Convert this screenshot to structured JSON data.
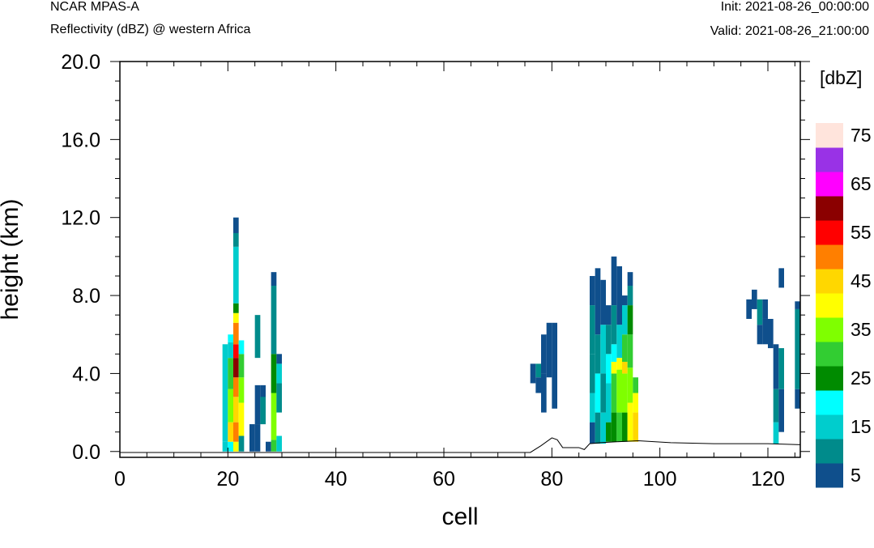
{
  "header": {
    "title": "NCAR MPAS-A",
    "subtitle": "Reflectivity (dBZ) @ western Africa",
    "init": "Init: 2021-08-26_00:00:00",
    "valid": "Valid: 2021-08-26_21:00:00"
  },
  "chart_data": {
    "type": "heatmap",
    "title": "NCAR MPAS-A",
    "subtitle": "Reflectivity (dBZ) @ western Africa",
    "xlabel": "cell",
    "ylabel": "height (km)",
    "xlim": [
      0,
      126
    ],
    "ylim": [
      -0.3,
      20
    ],
    "x_ticks": [
      "0",
      "20",
      "40",
      "60",
      "80",
      "100",
      "120"
    ],
    "y_ticks": [
      "0.0",
      "4.0",
      "8.0",
      "12.0",
      "16.0",
      "20.0"
    ],
    "colorbar": {
      "unit": "[dbZ]",
      "levels": [
        5,
        10,
        15,
        20,
        25,
        30,
        35,
        40,
        45,
        50,
        55,
        60,
        65,
        70,
        75
      ],
      "labels": [
        "5",
        "15",
        "25",
        "35",
        "45",
        "55",
        "65",
        "75"
      ],
      "colors": [
        "#0f4f8c",
        "#008b8b",
        "#00cdcd",
        "#00ffff",
        "#008b00",
        "#32cd32",
        "#7fff00",
        "#ffff00",
        "#ffd700",
        "#ff7f00",
        "#ff0000",
        "#8b0000",
        "#ff00ff",
        "#9932e6",
        "#ffe4dc"
      ]
    },
    "terrain": [
      [
        0,
        -0.05
      ],
      [
        75,
        -0.05
      ],
      [
        76,
        -0.05
      ],
      [
        78,
        0.3
      ],
      [
        80,
        0.7
      ],
      [
        81,
        0.6
      ],
      [
        82,
        0.2
      ],
      [
        85,
        0.2
      ],
      [
        86,
        0.1
      ],
      [
        87,
        0.4
      ],
      [
        89,
        0.45
      ],
      [
        92,
        0.5
      ],
      [
        96,
        0.55
      ],
      [
        102,
        0.45
      ],
      [
        110,
        0.4
      ],
      [
        120,
        0.4
      ],
      [
        126,
        0.35
      ]
    ],
    "columns": [
      {
        "x": 19,
        "segs": [
          [
            0,
            0.5,
            2
          ],
          [
            0.5,
            5.5,
            2
          ]
        ]
      },
      {
        "x": 20,
        "segs": [
          [
            0,
            0.5,
            3
          ],
          [
            0.5,
            1.5,
            8
          ],
          [
            1.5,
            3.2,
            6
          ],
          [
            3.2,
            4.8,
            5
          ],
          [
            4.8,
            5.6,
            2
          ],
          [
            5.6,
            6.0,
            3
          ]
        ]
      },
      {
        "x": 21,
        "segs": [
          [
            0,
            0.5,
            7
          ],
          [
            0.5,
            1.5,
            9
          ],
          [
            1.5,
            2.8,
            8
          ],
          [
            2.8,
            3.8,
            9
          ],
          [
            3.8,
            4.8,
            11
          ],
          [
            4.8,
            5.5,
            10
          ],
          [
            5.5,
            6.6,
            9
          ],
          [
            6.6,
            7.1,
            7
          ],
          [
            7.1,
            7.6,
            4
          ],
          [
            7.6,
            10.5,
            2
          ],
          [
            10.5,
            11.2,
            1
          ],
          [
            11.2,
            12.0,
            0
          ]
        ]
      },
      {
        "x": 22,
        "segs": [
          [
            0,
            0.8,
            1
          ],
          [
            0.8,
            2.5,
            7
          ],
          [
            2.5,
            3.8,
            6
          ],
          [
            3.8,
            5.0,
            5
          ],
          [
            5.0,
            5.7,
            3
          ]
        ]
      },
      {
        "x": 24,
        "segs": [
          [
            0,
            1.4,
            0
          ]
        ]
      },
      {
        "x": 25,
        "segs": [
          [
            0,
            1.4,
            0
          ],
          [
            1.4,
            3.4,
            0
          ],
          [
            4.8,
            7.0,
            1
          ]
        ]
      },
      {
        "x": 26,
        "segs": [
          [
            1.4,
            3.4,
            0
          ],
          [
            1.4,
            2.8,
            1
          ]
        ]
      },
      {
        "x": 27,
        "segs": [
          [
            0,
            0.5,
            0
          ]
        ]
      },
      {
        "x": 28,
        "segs": [
          [
            0,
            0.6,
            5
          ],
          [
            0.6,
            3.0,
            6
          ],
          [
            3.0,
            5.0,
            4
          ],
          [
            5.0,
            8.5,
            1
          ],
          [
            8.5,
            9.2,
            0
          ]
        ]
      },
      {
        "x": 29,
        "segs": [
          [
            0,
            0.8,
            2
          ],
          [
            2.0,
            3.5,
            1
          ],
          [
            3.5,
            4.5,
            2
          ],
          [
            4.5,
            5.0,
            0
          ]
        ]
      },
      {
        "x": 76,
        "segs": [
          [
            3.5,
            4.5,
            0
          ]
        ]
      },
      {
        "x": 77,
        "segs": [
          [
            3.8,
            4.5,
            1
          ],
          [
            3.0,
            3.8,
            0
          ]
        ]
      },
      {
        "x": 78,
        "segs": [
          [
            2.0,
            4.0,
            0
          ],
          [
            4.0,
            6.0,
            0
          ]
        ]
      },
      {
        "x": 79,
        "segs": [
          [
            3.8,
            6.6,
            0
          ]
        ]
      },
      {
        "x": 80,
        "segs": [
          [
            2.2,
            6.6,
            0
          ]
        ]
      },
      {
        "x": 87,
        "segs": [
          [
            0.4,
            1.5,
            0
          ],
          [
            1.5,
            3.0,
            2
          ],
          [
            3.0,
            5.0,
            1
          ],
          [
            5.0,
            7.5,
            1
          ],
          [
            7.5,
            9.0,
            0
          ]
        ]
      },
      {
        "x": 88,
        "segs": [
          [
            0.4,
            2.0,
            1
          ],
          [
            2.0,
            4.0,
            3
          ],
          [
            4.0,
            6.0,
            1
          ],
          [
            6.0,
            9.4,
            0
          ]
        ]
      },
      {
        "x": 89,
        "segs": [
          [
            0.4,
            2.0,
            2
          ],
          [
            2.0,
            4.0,
            1
          ],
          [
            4.0,
            6.5,
            2
          ],
          [
            6.5,
            8.8,
            0
          ]
        ]
      },
      {
        "x": 90,
        "segs": [
          [
            0.5,
            1.5,
            4
          ],
          [
            1.5,
            3.5,
            2
          ],
          [
            3.5,
            5.0,
            3
          ],
          [
            5.0,
            6.5,
            1
          ],
          [
            6.5,
            7.5,
            0
          ]
        ]
      },
      {
        "x": 91,
        "segs": [
          [
            0.5,
            2.0,
            4
          ],
          [
            2.0,
            4.0,
            5
          ],
          [
            4.0,
            4.6,
            7
          ],
          [
            4.6,
            5.5,
            3
          ],
          [
            5.5,
            7.5,
            1
          ],
          [
            7.5,
            10.0,
            0
          ]
        ]
      },
      {
        "x": 92,
        "segs": [
          [
            0.5,
            2.0,
            5
          ],
          [
            2.0,
            4.2,
            6
          ],
          [
            4.2,
            4.8,
            7
          ],
          [
            4.8,
            6.5,
            2
          ],
          [
            6.5,
            9.5,
            0
          ]
        ]
      },
      {
        "x": 93,
        "segs": [
          [
            0.5,
            2.0,
            4
          ],
          [
            2.0,
            4.0,
            6
          ],
          [
            4.0,
            4.6,
            8
          ],
          [
            4.6,
            6.0,
            5
          ],
          [
            6.0,
            7.5,
            2
          ],
          [
            7.5,
            8.0,
            0
          ]
        ]
      },
      {
        "x": 94,
        "segs": [
          [
            0.5,
            2.5,
            7
          ],
          [
            2.5,
            4.3,
            6
          ],
          [
            4.3,
            6.0,
            5
          ],
          [
            6.0,
            7.5,
            4
          ],
          [
            7.5,
            8.5,
            1
          ],
          [
            8.5,
            9.2,
            0
          ]
        ]
      },
      {
        "x": 95,
        "segs": [
          [
            0.5,
            2.0,
            8
          ],
          [
            2.0,
            3.0,
            7
          ],
          [
            3.0,
            3.8,
            5
          ]
        ]
      },
      {
        "x": 116,
        "segs": [
          [
            6.8,
            7.8,
            0
          ]
        ]
      },
      {
        "x": 117,
        "segs": [
          [
            7.3,
            8.3,
            0
          ]
        ]
      },
      {
        "x": 118,
        "segs": [
          [
            5.5,
            6.5,
            0
          ],
          [
            6.5,
            7.8,
            1
          ]
        ]
      },
      {
        "x": 119,
        "segs": [
          [
            5.5,
            6.8,
            0
          ],
          [
            6.8,
            7.8,
            0
          ]
        ]
      },
      {
        "x": 120,
        "segs": [
          [
            5.3,
            6.8,
            0
          ]
        ]
      },
      {
        "x": 121,
        "segs": [
          [
            0.4,
            1.5,
            2
          ],
          [
            1.5,
            3.2,
            1
          ],
          [
            3.2,
            5.5,
            0
          ]
        ]
      },
      {
        "x": 122,
        "segs": [
          [
            1.0,
            3.2,
            0
          ],
          [
            3.2,
            5.3,
            1
          ],
          [
            8.4,
            9.4,
            0
          ]
        ]
      },
      {
        "x": 125,
        "segs": [
          [
            2.2,
            3.2,
            0
          ],
          [
            3.2,
            7.3,
            1
          ],
          [
            7.3,
            7.7,
            0
          ]
        ]
      }
    ]
  }
}
